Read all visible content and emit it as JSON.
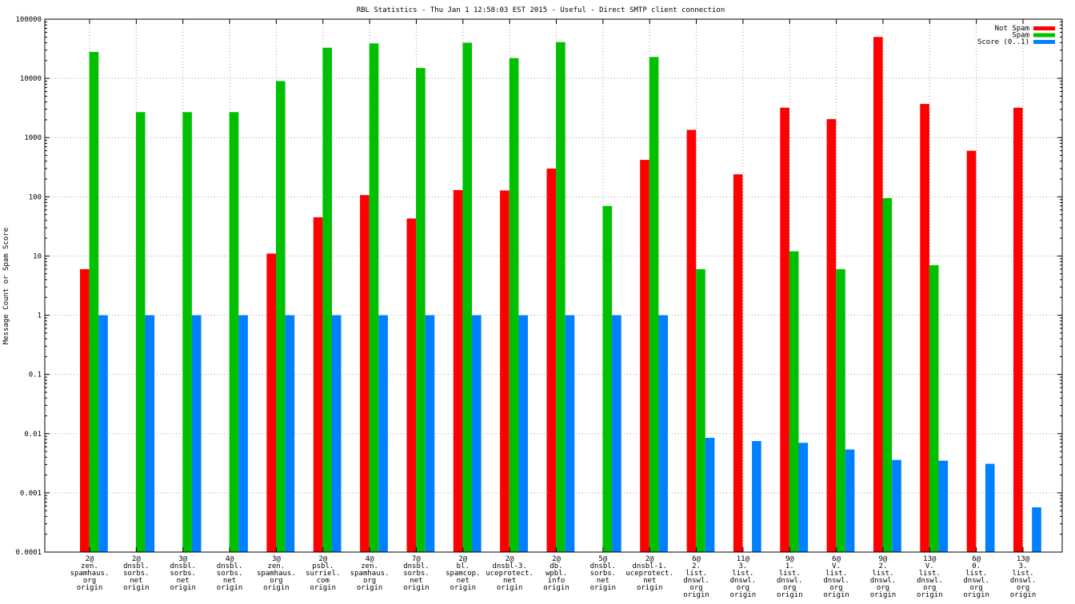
{
  "chart_data": {
    "type": "bar",
    "title": "RBL Statistics - Thu Jan  1 12:58:03 EST 2015 - Useful - Direct SMTP client connection",
    "ylabel": "Message Count or Spam Score",
    "xlabel": "",
    "yscale": "log",
    "ylim": [
      0.0001,
      100000
    ],
    "yticks": [
      "0.0001",
      "0.001",
      "0.01",
      "0.1",
      "1",
      "10",
      "100",
      "1000",
      "10000",
      "100000"
    ],
    "grid": true,
    "legend_position": "top-right",
    "categories": [
      [
        "2@",
        "zen.",
        "spamhaus.",
        "org",
        "origin"
      ],
      [
        "2@",
        "dnsbl.",
        "sorbs.",
        "net",
        "origin"
      ],
      [
        "3@",
        "dnsbl.",
        "sorbs.",
        "net",
        "origin"
      ],
      [
        "4@",
        "dnsbl.",
        "sorbs.",
        "net",
        "origin"
      ],
      [
        "3@",
        "zen.",
        "spamhaus.",
        "org",
        "origin"
      ],
      [
        "2@",
        "psbl.",
        "surriel.",
        "com",
        "origin"
      ],
      [
        "4@",
        "zen.",
        "spamhaus.",
        "org",
        "origin"
      ],
      [
        "7@",
        "dnsbl.",
        "sorbs.",
        "net",
        "origin"
      ],
      [
        "2@",
        "bl.",
        "spamcop.",
        "net",
        "origin"
      ],
      [
        "2@",
        "dnsbl-3.",
        "uceprotect.",
        "net",
        "origin"
      ],
      [
        "2@",
        "db.",
        "wpbl.",
        "info",
        "origin"
      ],
      [
        "5@",
        "dnsbl.",
        "sorbs.",
        "net",
        "origin"
      ],
      [
        "2@",
        "dnsbl-1.",
        "uceprotect.",
        "net",
        "origin"
      ],
      [
        "6@",
        "2.",
        "list.",
        "dnswl.",
        "org",
        "origin"
      ],
      [
        "11@",
        "3.",
        "list.",
        "dnswl.",
        "org",
        "origin"
      ],
      [
        "9@",
        "1.",
        "list.",
        "dnswl.",
        "org",
        "origin"
      ],
      [
        "6@",
        "V.",
        "list.",
        "dnswl.",
        "org",
        "origin"
      ],
      [
        "9@",
        "2.",
        "list.",
        "dnswl.",
        "org",
        "origin"
      ],
      [
        "13@",
        "V.",
        "list.",
        "dnswl.",
        "org",
        "origin"
      ],
      [
        "6@",
        "0.",
        "list.",
        "dnswl.",
        "org",
        "origin"
      ],
      [
        "13@",
        "3.",
        "list.",
        "dnswl.",
        "org",
        "origin"
      ]
    ],
    "series": [
      {
        "name": "Not Spam",
        "color": "#ff0000",
        "values": [
          6,
          null,
          null,
          null,
          11,
          45,
          107,
          43,
          130,
          128,
          300,
          null,
          420,
          1350,
          240,
          3200,
          2050,
          50000,
          3700,
          600,
          3200
        ]
      },
      {
        "name": "Spam",
        "color": "#00c000",
        "values": [
          28000,
          2700,
          2700,
          2700,
          9000,
          33000,
          39000,
          15000,
          40000,
          22000,
          41000,
          70,
          23000,
          6,
          null,
          12,
          6,
          95,
          7,
          null,
          null
        ]
      },
      {
        "name": "Score (0..1)",
        "color": "#0080ff",
        "values": [
          1,
          1,
          1,
          1,
          1,
          1,
          1,
          1,
          1,
          1,
          1,
          1,
          1,
          0.0085,
          0.0075,
          0.007,
          0.0054,
          0.0036,
          0.0035,
          0.0031,
          0.00057
        ]
      }
    ]
  }
}
